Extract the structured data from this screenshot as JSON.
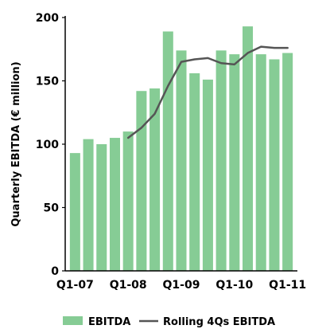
{
  "chart_data": {
    "type": "bar",
    "categories": [
      "Q1-07",
      "Q2-07",
      "Q3-07",
      "Q4-07",
      "Q1-08",
      "Q2-08",
      "Q3-08",
      "Q4-08",
      "Q1-09",
      "Q2-09",
      "Q3-09",
      "Q4-09",
      "Q1-10",
      "Q2-10",
      "Q3-10",
      "Q4-10",
      "Q1-11"
    ],
    "x_tick_labels": [
      "Q1-07",
      "Q1-08",
      "Q1-09",
      "Q1-10",
      "Q1-11"
    ],
    "series": [
      {
        "name": "EBITDA",
        "type": "bar",
        "color": "#86cc95",
        "values": [
          93,
          104,
          100,
          105,
          110,
          142,
          144,
          189,
          174,
          156,
          151,
          174,
          171,
          193,
          171,
          167,
          172
        ]
      },
      {
        "name": "Rolling 4Qs EBITDA",
        "type": "line",
        "color": "#555555",
        "values": [
          null,
          null,
          null,
          null,
          105,
          113,
          124,
          146,
          165,
          167,
          168,
          164,
          163,
          172,
          177,
          176,
          176
        ]
      }
    ],
    "ylabel": "Quarterly EBITDA (€ million)",
    "xlabel": "",
    "ylim": [
      0,
      200
    ],
    "y_ticks": [
      0,
      50,
      100,
      150,
      200
    ],
    "grid": false,
    "legend_position": "bottom"
  }
}
